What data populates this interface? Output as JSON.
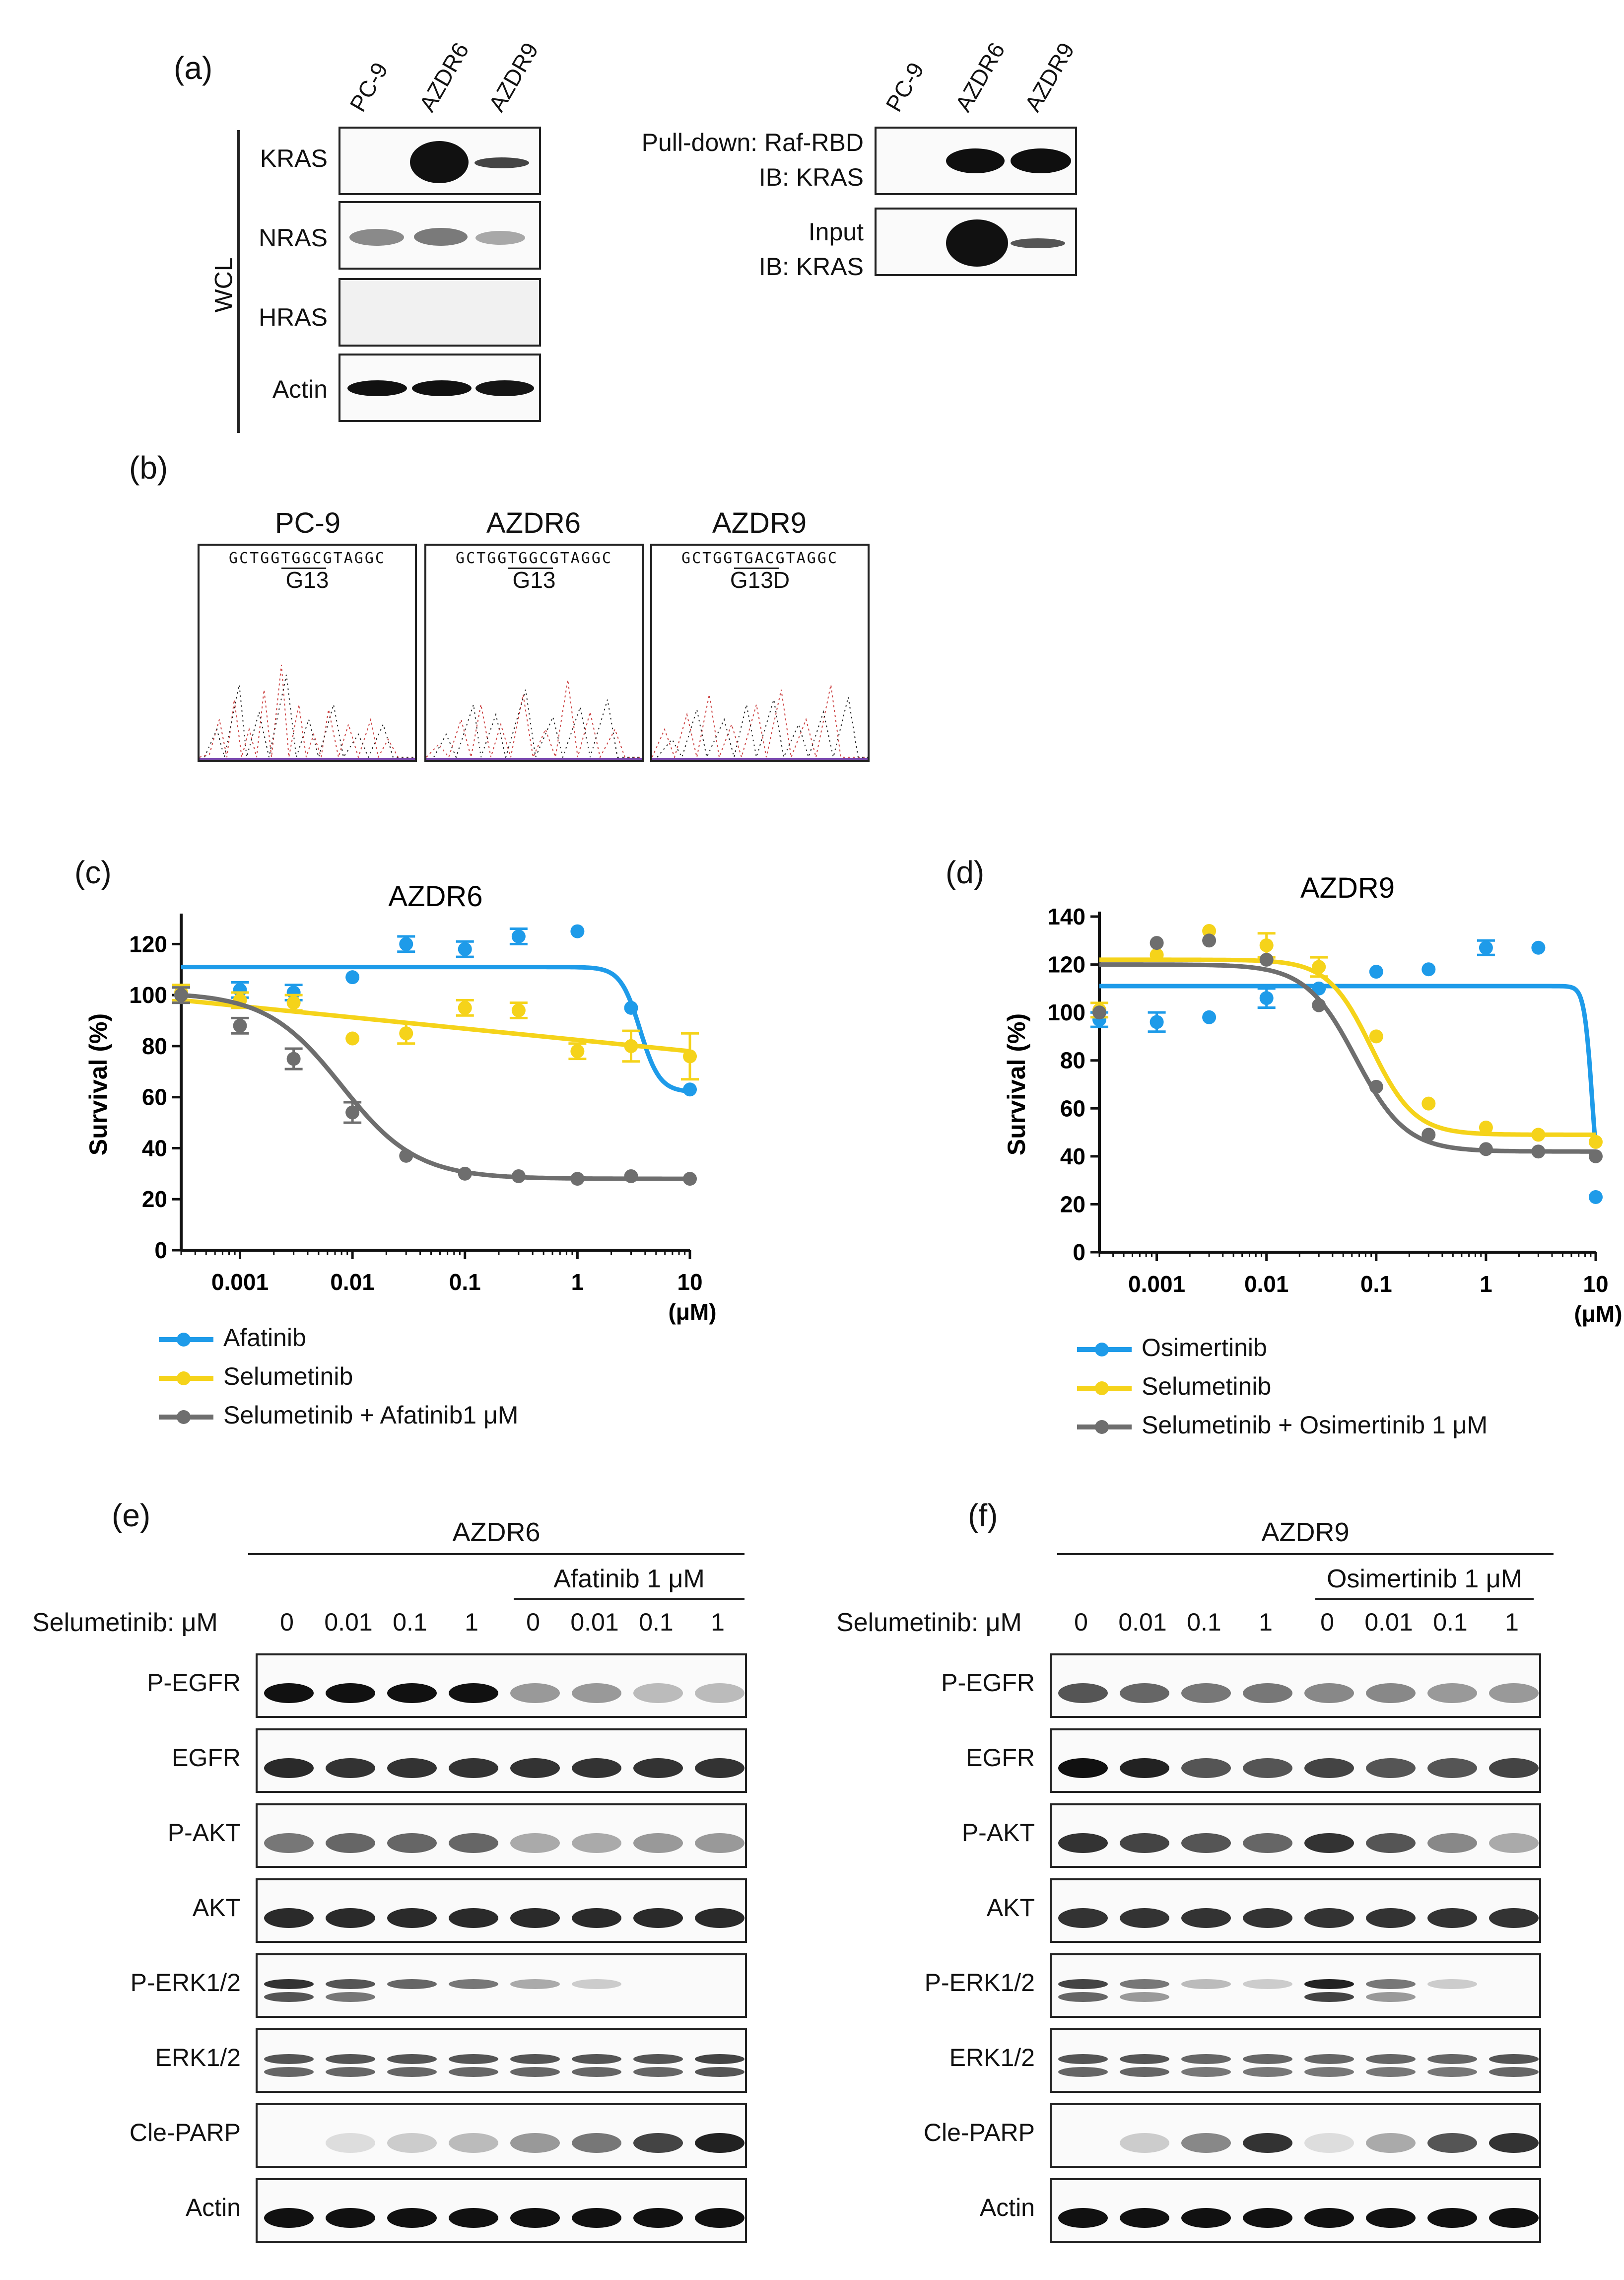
{
  "panels": {
    "a": {
      "label": "(a)",
      "lanes": [
        "PC-9",
        "AZDR6",
        "AZDR9"
      ],
      "wcl_label": "WCL",
      "blots": [
        "KRAS",
        "NRAS",
        "HRAS",
        "Actin"
      ],
      "pulldown_lanes": [
        "PC-9",
        "AZDR6",
        "AZDR9"
      ],
      "pulldown_label_line1": "Pull-down: Raf-RBD",
      "pulldown_label_line2": "IB: KRAS",
      "input_label_line1": "Input",
      "input_label_line2": "IB: KRAS"
    },
    "b": {
      "label": "(b)",
      "samples": [
        {
          "name": "PC-9",
          "sequence": "GCTGGTGGCGTAGGC",
          "mutation": "G13"
        },
        {
          "name": "AZDR6",
          "sequence": "GCTGGTGGCGTAGGC",
          "mutation": "G13"
        },
        {
          "name": "AZDR9",
          "sequence": "GCTGGTGACGTAGGC",
          "mutation": "G13D"
        }
      ]
    },
    "c": {
      "label": "(c)",
      "legend": [
        "Afatinib",
        "Selumetinib",
        "Selumetinib + Afatinib1 μM"
      ]
    },
    "d": {
      "label": "(d)",
      "legend": [
        "Osimertinib",
        "Selumetinib",
        "Selumetinib + Osimertinib 1 μM"
      ]
    },
    "e": {
      "label": "(e)",
      "cell_line": "AZDR6",
      "combo_label": "Afatinib 1 μM",
      "dose_header": "Selumetinib: μM",
      "doses": [
        "0",
        "0.01",
        "0.1",
        "1",
        "0",
        "0.01",
        "0.1",
        "1"
      ],
      "blots": [
        "P-EGFR",
        "EGFR",
        "P-AKT",
        "AKT",
        "P-ERK1/2",
        "ERK1/2",
        "Cle-PARP",
        "Actin"
      ]
    },
    "f": {
      "label": "(f)",
      "cell_line": "AZDR9",
      "combo_label": "Osimertinib 1 μM",
      "dose_header": "Selumetinib: μM",
      "doses": [
        "0",
        "0.01",
        "0.1",
        "1",
        "0",
        "0.01",
        "0.1",
        "1"
      ],
      "blots": [
        "P-EGFR",
        "EGFR",
        "P-AKT",
        "AKT",
        "P-ERK1/2",
        "ERK1/2",
        "Cle-PARP",
        "Actin"
      ]
    }
  },
  "colors": {
    "blue": "#1E9BE9",
    "yellow": "#F5D31A",
    "gray": "#6E6E6E"
  },
  "chart_data": [
    {
      "type": "line",
      "title": "AZDR6",
      "xlabel": "(μM)",
      "ylabel": "Survival (%)",
      "xscale": "log",
      "xlim": [
        0.0003,
        10
      ],
      "ylim": [
        0,
        130
      ],
      "xticks": [
        "0.001",
        "0.01",
        "0.1",
        "1",
        "10"
      ],
      "yticks": [
        "0",
        "20",
        "40",
        "60",
        "80",
        "100",
        "120"
      ],
      "series": [
        {
          "name": "Afatinib",
          "color": "blue",
          "x": [
            0.0003,
            0.001,
            0.003,
            0.01,
            0.03,
            0.1,
            0.3,
            1,
            3,
            10
          ],
          "y": [
            100,
            102,
            101,
            107,
            120,
            118,
            123,
            125,
            95,
            63
          ],
          "err": [
            3,
            3,
            3,
            0,
            3,
            3,
            3,
            0,
            0,
            0
          ],
          "fit": {
            "top": 111,
            "bottom": 62,
            "ic50": 3.6,
            "hill": 5
          }
        },
        {
          "name": "Selumetinib",
          "color": "yellow",
          "x": [
            0.0003,
            0.001,
            0.003,
            0.01,
            0.03,
            0.1,
            0.3,
            1,
            3,
            10
          ],
          "y": [
            101,
            98,
            97,
            83,
            85,
            95,
            94,
            78,
            80,
            76
          ],
          "err": [
            3,
            3,
            3,
            0,
            4,
            3,
            3,
            3,
            6,
            9
          ],
          "fit_linear": {
            "y_start": 98,
            "y_end": 78
          }
        },
        {
          "name": "Selumetinib + Afatinib1 μM",
          "color": "gray",
          "x": [
            0.0003,
            0.001,
            0.003,
            0.01,
            0.03,
            0.1,
            0.3,
            1,
            3,
            10
          ],
          "y": [
            100,
            88,
            75,
            54,
            37,
            30,
            29,
            28,
            29,
            28
          ],
          "err": [
            3,
            3,
            4,
            4,
            0,
            0,
            0,
            0,
            0,
            0
          ],
          "fit": {
            "top": 101,
            "bottom": 28,
            "ic50": 0.008,
            "hill": 1.3
          }
        }
      ]
    },
    {
      "type": "line",
      "title": "AZDR9",
      "xlabel": "(μM)",
      "ylabel": "Survival (%)",
      "xscale": "log",
      "xlim": [
        0.0003,
        10
      ],
      "ylim": [
        0,
        140
      ],
      "xticks": [
        "0.001",
        "0.01",
        "0.1",
        "1",
        "10"
      ],
      "yticks": [
        "0",
        "20",
        "40",
        "60",
        "80",
        "100",
        "120",
        "140"
      ],
      "series": [
        {
          "name": "Osimertinib",
          "color": "blue",
          "x": [
            0.0003,
            0.001,
            0.003,
            0.01,
            0.03,
            0.1,
            0.3,
            1,
            3,
            10
          ],
          "y": [
            97,
            96,
            98,
            106,
            110,
            117,
            118,
            127,
            127,
            23
          ],
          "err": [
            3,
            4,
            0,
            4,
            0,
            0,
            0,
            3,
            0,
            0
          ],
          "fit": {
            "top": 111,
            "bottom": 15,
            "ic50": 9.3,
            "hill": 12
          }
        },
        {
          "name": "Selumetinib",
          "color": "yellow",
          "x": [
            0.0003,
            0.001,
            0.003,
            0.01,
            0.03,
            0.1,
            0.3,
            1,
            3,
            10
          ],
          "y": [
            101,
            124,
            134,
            128,
            119,
            90,
            62,
            52,
            49,
            46
          ],
          "err": [
            3,
            0,
            0,
            5,
            4,
            0,
            0,
            0,
            0,
            0
          ],
          "fit": {
            "top": 122,
            "bottom": 49,
            "ic50": 0.09,
            "hill": 2.2
          }
        },
        {
          "name": "Selumetinib + Osimertinib 1 μM",
          "color": "gray",
          "x": [
            0.0003,
            0.001,
            0.003,
            0.01,
            0.03,
            0.1,
            0.3,
            1,
            3,
            10
          ],
          "y": [
            100,
            129,
            130,
            122,
            103,
            69,
            49,
            43,
            42,
            40
          ],
          "err": [
            0,
            0,
            0,
            0,
            0,
            0,
            0,
            0,
            0,
            0
          ],
          "fit": {
            "top": 120,
            "bottom": 42,
            "ic50": 0.065,
            "hill": 1.9
          }
        }
      ]
    }
  ]
}
